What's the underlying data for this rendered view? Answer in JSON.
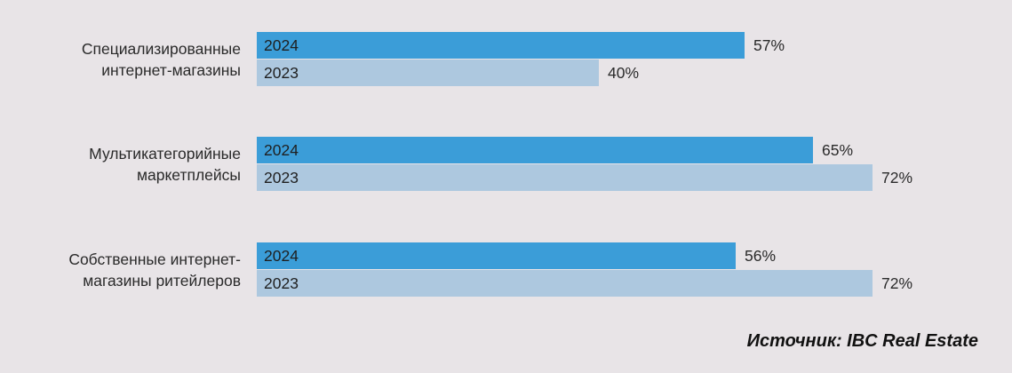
{
  "chart_data": {
    "type": "bar",
    "orientation": "horizontal",
    "categories": [
      [
        "Специализированные",
        "интернет-магазины"
      ],
      [
        "Мультикатегорийные",
        "маркетплейсы"
      ],
      [
        "Собственные интернет-",
        "магазины ритейлеров"
      ]
    ],
    "series": [
      {
        "name": "2024",
        "values": [
          57,
          65,
          56
        ],
        "color": "#3b9dd8"
      },
      {
        "name": "2023",
        "values": [
          40,
          72,
          72
        ],
        "color": "#adc8df"
      }
    ],
    "value_format": "%",
    "xlim": [
      0,
      72
    ],
    "grid": false,
    "legend": "none"
  },
  "source": "Источник: IBC Real Estate"
}
